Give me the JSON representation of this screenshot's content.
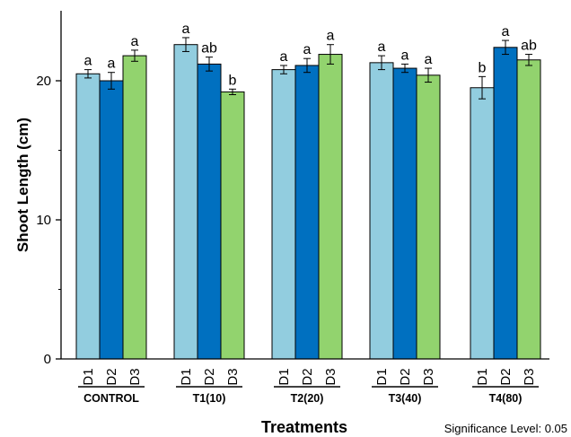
{
  "chart_data": {
    "type": "bar",
    "ylabel": "Shoot Length (cm)",
    "xlabel": "Treatments",
    "note": "Significance Level: 0.05",
    "ylim": [
      0,
      25
    ],
    "yticks": [
      0,
      10,
      20
    ],
    "grid": false,
    "categories": [
      "CONTROL",
      "T1(10)",
      "T2(20)",
      "T3(40)",
      "T4(80)"
    ],
    "series": [
      {
        "name": "D1",
        "color": "#92CDDF",
        "values": [
          20.5,
          22.6,
          20.8,
          21.3,
          19.5
        ],
        "errors": [
          0.3,
          0.5,
          0.3,
          0.5,
          0.8
        ],
        "letters": [
          "a",
          "a",
          "a",
          "a",
          "b"
        ]
      },
      {
        "name": "D2",
        "color": "#0070C0",
        "values": [
          20.0,
          21.2,
          21.1,
          20.9,
          22.4
        ],
        "errors": [
          0.6,
          0.5,
          0.5,
          0.3,
          0.5
        ],
        "letters": [
          "a",
          "ab",
          "a",
          "a",
          "a"
        ]
      },
      {
        "name": "D3",
        "color": "#92D36E",
        "values": [
          21.8,
          19.2,
          21.9,
          20.4,
          21.5
        ],
        "errors": [
          0.4,
          0.2,
          0.7,
          0.5,
          0.4
        ],
        "letters": [
          "a",
          "b",
          "a",
          "a",
          "ab"
        ]
      }
    ]
  }
}
